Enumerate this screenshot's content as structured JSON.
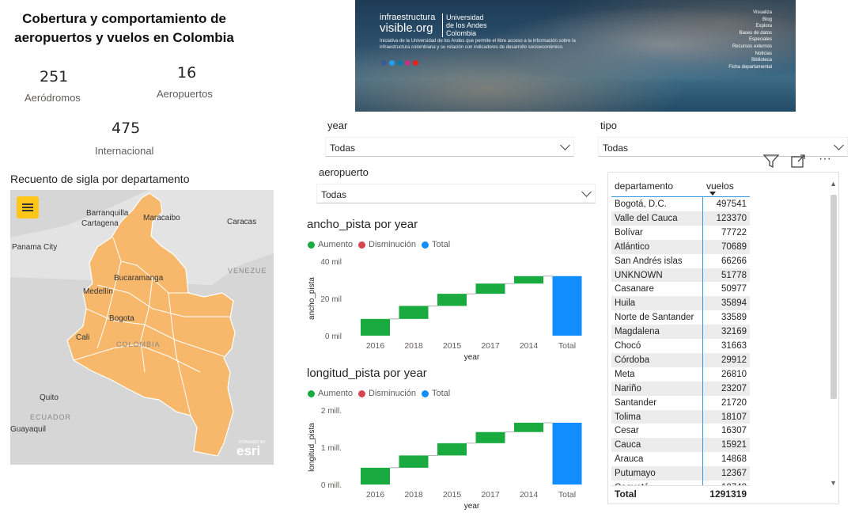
{
  "title": "Cobertura y comportamiento de aeropuertos y vuelos en Colombia",
  "kpis": [
    {
      "value": "251",
      "label": "Aeródromos"
    },
    {
      "value": "16",
      "label": "Aeropuertos"
    },
    {
      "value": "475",
      "label": "Internacional"
    }
  ],
  "banner": {
    "brand_line1": "infraestructura",
    "brand_line2": "visible.org",
    "university": "Universidad de los Andes Colombia",
    "description": "Iniciativa de la Universidad de los Andes que permite el libre acceso a la información sobre la infraestructura colombiana y su relación con indicadores de desarrollo socioeconómico.",
    "menu": [
      "Visualiza",
      "Blog",
      "Explora",
      "Bases de datos",
      "Especiales",
      "Recursos externos",
      "Noticias",
      "Biblioteca",
      "Ficha departamental"
    ]
  },
  "filters": {
    "year": {
      "label": "year",
      "value": "Todas"
    },
    "tipo": {
      "label": "tipo",
      "value": "Todas"
    },
    "aeropuerto": {
      "label": "aeropuerto",
      "value": "Todas"
    }
  },
  "map": {
    "title": "Recuento de sigla por departamento",
    "labels": [
      "Barranquilla",
      "Cartagena",
      "Maracaibo",
      "Caracas",
      "Panama City",
      "VENEZUE",
      "Bucaramanga",
      "Medellín",
      "Bogota",
      "Cali",
      "COLOMBIA",
      "Quito",
      "ECUADOR",
      "Guayaquil"
    ],
    "attribution": "esri",
    "powered": "POWERED BY",
    "fill_color": "#f8b86b"
  },
  "legend": {
    "increase": "Aumento",
    "decrease": "Disminución",
    "total": "Total"
  },
  "colors": {
    "increase": "#1aab40",
    "decrease": "#d64550",
    "total": "#118dff"
  },
  "charts": [
    {
      "title": "ancho_pista por year",
      "chart_data": {
        "type": "waterfall",
        "categories": [
          "2016",
          "2018",
          "2015",
          "2017",
          "2014",
          "Total"
        ],
        "values": [
          9000,
          7000,
          6500,
          5500,
          4000,
          32000
        ],
        "ylabel": "ancho_pista",
        "xlabel": "year",
        "yticks": [
          "0 mil",
          "20 mil",
          "40 mil"
        ],
        "ylim": [
          0,
          40000
        ]
      }
    },
    {
      "title": "longitud_pista por year",
      "chart_data": {
        "type": "waterfall",
        "categories": [
          "2016",
          "2018",
          "2015",
          "2017",
          "2014",
          "Total"
        ],
        "values": [
          450000,
          330000,
          330000,
          300000,
          250000,
          1660000
        ],
        "ylabel": "longitud_pista",
        "xlabel": "year",
        "yticks": [
          "0 mill.",
          "1 mill.",
          "2 mill."
        ],
        "ylim": [
          0,
          2000000
        ]
      }
    }
  ],
  "table": {
    "col1": "departamento",
    "col2": "vuelos",
    "rows": [
      [
        "Bogotá, D.C.",
        "497541"
      ],
      [
        "Valle del Cauca",
        "123370"
      ],
      [
        "Bolívar",
        "77722"
      ],
      [
        "Atlántico",
        "70689"
      ],
      [
        "San Andrés islas",
        "66266"
      ],
      [
        "UNKNOWN",
        "51778"
      ],
      [
        "Casanare",
        "50977"
      ],
      [
        "Huila",
        "35894"
      ],
      [
        "Norte de Santander",
        "33589"
      ],
      [
        "Magdalena",
        "32169"
      ],
      [
        "Chocó",
        "31663"
      ],
      [
        "Córdoba",
        "29912"
      ],
      [
        "Meta",
        "26810"
      ],
      [
        "Nariño",
        "23207"
      ],
      [
        "Santander",
        "21720"
      ],
      [
        "Tolima",
        "18107"
      ],
      [
        "Cesar",
        "16307"
      ],
      [
        "Cauca",
        "15921"
      ],
      [
        "Arauca",
        "14868"
      ],
      [
        "Putumayo",
        "12367"
      ],
      [
        "Caquetá",
        "10748"
      ]
    ],
    "total_label": "Total",
    "total_value": "1291319"
  }
}
